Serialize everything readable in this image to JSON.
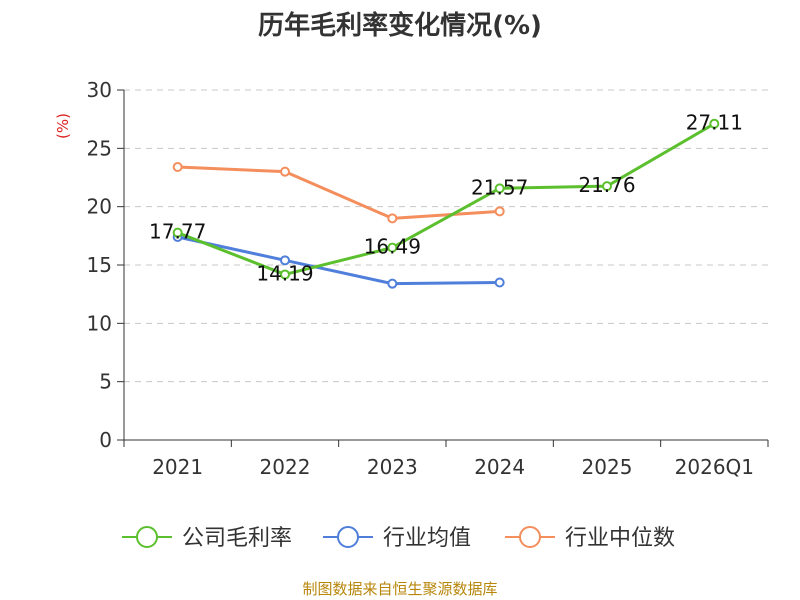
{
  "chart_data": {
    "type": "line",
    "title": "历年毛利率变化情况(%)",
    "ylabel": "(%)",
    "xlabel": "",
    "categories": [
      "2021",
      "2022",
      "2023",
      "2024",
      "2025",
      "2026Q1"
    ],
    "ylim": [
      0,
      30
    ],
    "yticks": [
      "0",
      "5",
      "10",
      "15",
      "20",
      "25",
      "30"
    ],
    "grid": "horizontal-dashed",
    "legend_position": "bottom",
    "series": [
      {
        "name": "公司毛利率",
        "color": "#5cc02e",
        "values": [
          17.77,
          14.19,
          16.49,
          21.57,
          21.76,
          27.11
        ],
        "labels": [
          "17.77",
          "14.19",
          "16.49",
          "21.57",
          "21.76",
          "27.11"
        ]
      },
      {
        "name": "行业均值",
        "color": "#4f7fdb",
        "values": [
          17.4,
          15.4,
          13.4,
          13.5,
          null,
          null
        ]
      },
      {
        "name": "行业中位数",
        "color": "#f48e5c",
        "values": [
          23.4,
          23.0,
          19.0,
          19.6,
          null,
          null
        ]
      }
    ]
  },
  "source_text": "制图数据来自恒生聚源数据库"
}
